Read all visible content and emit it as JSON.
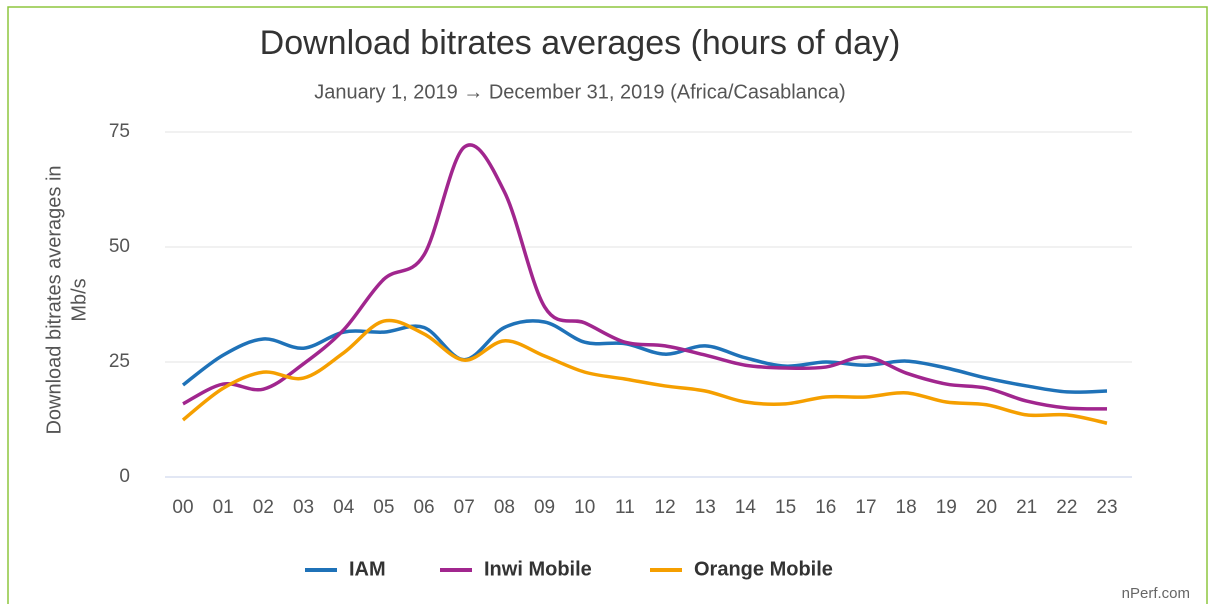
{
  "chart_data": {
    "type": "line",
    "title": "Download bitrates averages (hours of day)",
    "subtitle": "January 1, 2019 → December 31, 2019 (Africa/Casablanca)",
    "ylabel": [
      "Download bitrates averages in",
      "Mb/s"
    ],
    "source": "nPerf.com",
    "categories": [
      "00",
      "01",
      "02",
      "03",
      "04",
      "05",
      "06",
      "07",
      "08",
      "09",
      "10",
      "11",
      "12",
      "13",
      "14",
      "15",
      "16",
      "17",
      "18",
      "19",
      "20",
      "21",
      "22",
      "23"
    ],
    "series": [
      {
        "name": "IAM",
        "color": "#1f72b8",
        "values": [
          20,
          26.5,
          30,
          28,
          31.5,
          31.5,
          32.5,
          25.5,
          32.5,
          33.7,
          29.3,
          29,
          26.7,
          28.5,
          25.9,
          24.1,
          25,
          24.3,
          25.2,
          23.7,
          21.5,
          19.8,
          18.5,
          18.7
        ]
      },
      {
        "name": "Inwi Mobile",
        "color": "#a1268e",
        "values": [
          15.9,
          20.2,
          19.1,
          24.6,
          32,
          43,
          48.3,
          71.7,
          62,
          37,
          33.5,
          29.3,
          28.5,
          26.5,
          24.3,
          23.7,
          23.9,
          26.1,
          22.6,
          20.2,
          19.3,
          16.5,
          15,
          14.8
        ]
      },
      {
        "name": "Orange Mobile",
        "color": "#f59f00",
        "values": [
          12.4,
          19.3,
          22.8,
          21.5,
          27,
          33.9,
          31.1,
          25.4,
          29.6,
          26.3,
          22.8,
          21.3,
          19.8,
          18.7,
          16.3,
          15.9,
          17.4,
          17.4,
          18.3,
          16.3,
          15.7,
          13.5,
          13.5,
          11.7
        ]
      }
    ],
    "ylim": [
      0,
      75
    ],
    "yticks": [
      0,
      25,
      50,
      75
    ],
    "grid": true,
    "legend": "bottom"
  }
}
